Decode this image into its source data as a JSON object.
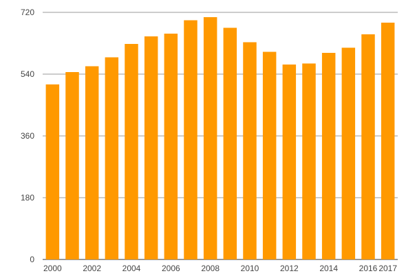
{
  "chart_data": {
    "type": "bar",
    "title": "",
    "xlabel": "",
    "ylabel": "",
    "categories": [
      "2000",
      "2001",
      "2002",
      "2003",
      "2004",
      "2005",
      "2006",
      "2007",
      "2008",
      "2009",
      "2010",
      "2011",
      "2012",
      "2013",
      "2014",
      "2015",
      "2016",
      "2017"
    ],
    "x_tick_labels": [
      "2000",
      "",
      "2002",
      "",
      "2004",
      "",
      "2006",
      "",
      "2008",
      "",
      "2010",
      "",
      "2012",
      "",
      "2014",
      "",
      "2016",
      "2017"
    ],
    "values": [
      510,
      546,
      563,
      589,
      628,
      650,
      658,
      697,
      706,
      675,
      633,
      605,
      568,
      571,
      602,
      617,
      656,
      690
    ],
    "ylim": [
      0,
      720
    ],
    "yticks": [
      0,
      180,
      360,
      540,
      720
    ],
    "ytick_labels": [
      "0",
      "180",
      "360",
      "540",
      "720"
    ],
    "grid": true,
    "bar_color": "#FF9900"
  }
}
